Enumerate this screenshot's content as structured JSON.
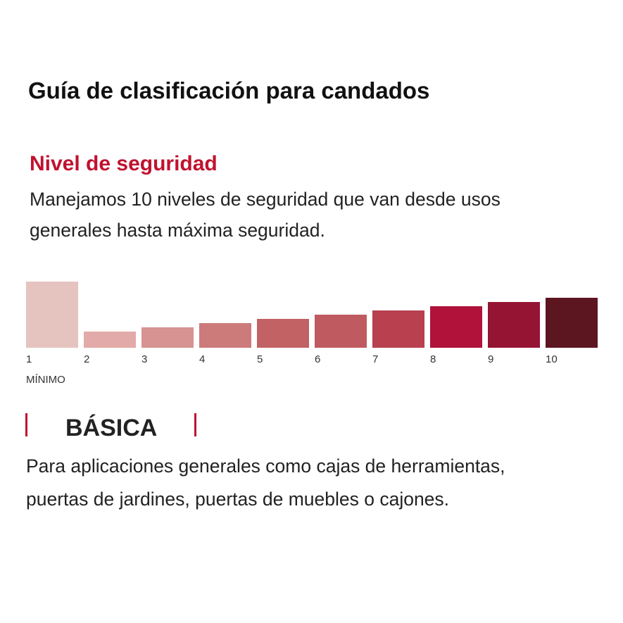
{
  "header": {
    "title": "Guía de clasificación para candados"
  },
  "section": {
    "heading": "Nivel de seguridad",
    "lines": [
      "Manejamos 10 niveles de seguridad que van desde usos",
      "generales hasta máxima seguridad."
    ]
  },
  "scale": {
    "levels": [
      "1",
      "2",
      "3",
      "4",
      "5",
      "6",
      "7",
      "8",
      "9",
      "10"
    ],
    "min_label": "MÍNIMO"
  },
  "category": {
    "name": "BÁSICA",
    "lines": [
      "Para aplicaciones generales como cajas de herramientas,",
      "puertas de jardines, puertas de muebles o cajones."
    ]
  }
}
